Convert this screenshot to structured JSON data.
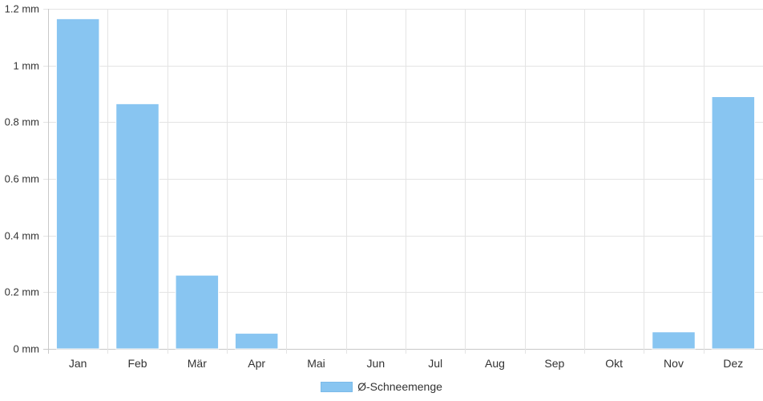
{
  "chart_data": {
    "type": "bar",
    "categories": [
      "Jan",
      "Feb",
      "Mär",
      "Apr",
      "Mai",
      "Jun",
      "Jul",
      "Aug",
      "Sep",
      "Okt",
      "Nov",
      "Dez"
    ],
    "series": [
      {
        "name": "Ø-Schneemenge",
        "values": [
          1.165,
          0.865,
          0.26,
          0.055,
          0,
          0,
          0,
          0,
          0,
          0,
          0.06,
          0.89
        ],
        "color": "#88c5f1"
      }
    ],
    "y_ticks": [
      "0 mm",
      "0.2 mm",
      "0.4 mm",
      "0.6 mm",
      "0.8 mm",
      "1 mm",
      "1.2 mm"
    ],
    "ylim": [
      0,
      1.2
    ],
    "grid": true,
    "legend_position": "bottom"
  }
}
